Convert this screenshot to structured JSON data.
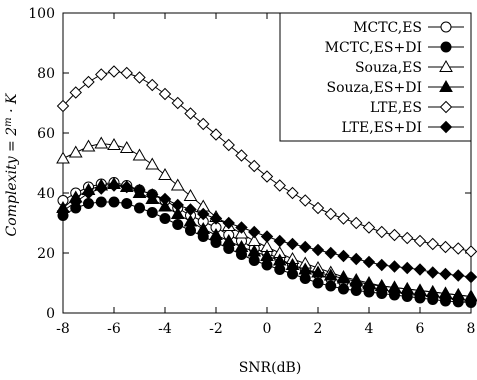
{
  "chart_data": {
    "type": "line",
    "title": "",
    "xlabel": "SNR(dB)",
    "ylabel_main": "Complexity = 2",
    "ylabel_sup": "m",
    "ylabel_tail": " · K",
    "xlim": [
      -8,
      8
    ],
    "ylim": [
      0,
      100
    ],
    "xticks": [
      "-8",
      "-6",
      "-4",
      "-2",
      "0",
      "2",
      "4",
      "6",
      "8"
    ],
    "yticks": [
      "0",
      "20",
      "40",
      "60",
      "80",
      "100"
    ],
    "grid": false,
    "legend_position": "top-right",
    "x": [
      -8,
      -7.5,
      -7,
      -6.5,
      -6,
      -5.5,
      -5,
      -4.5,
      -4,
      -3.5,
      -3,
      -2.5,
      -2,
      -1.5,
      -1,
      -0.5,
      0,
      0.5,
      1,
      1.5,
      2,
      2.5,
      3,
      3.5,
      4,
      4.5,
      5,
      5.5,
      6,
      6.5,
      7,
      7.5,
      8
    ],
    "series": [
      {
        "name": "MCTC,ES",
        "marker": "circle-open",
        "values": [
          37.5,
          40,
          42,
          43,
          43.5,
          42.5,
          41,
          39.5,
          37.5,
          35,
          32.5,
          30.5,
          28.5,
          26,
          24,
          21.5,
          20,
          18,
          16,
          14.5,
          13,
          11.5,
          10.5,
          9.5,
          8.5,
          7.8,
          7,
          6.5,
          6,
          5.5,
          5,
          4.6,
          4.2
        ]
      },
      {
        "name": "MCTC,ES+DI",
        "marker": "circle-filled",
        "values": [
          32.5,
          35,
          36.5,
          37,
          37,
          36.5,
          35,
          33.5,
          31.5,
          29.5,
          27.5,
          25.5,
          23.5,
          21.5,
          19.5,
          17.5,
          16,
          14.5,
          13,
          11.5,
          10,
          9,
          8,
          7.5,
          7,
          6.5,
          6,
          5.5,
          5,
          4.5,
          4,
          3.7,
          3.5
        ]
      },
      {
        "name": "Souza,ES",
        "marker": "triangle-open",
        "values": [
          51.5,
          53.5,
          55.5,
          56.5,
          56,
          55,
          52.5,
          49.5,
          46,
          42.5,
          39,
          35.5,
          32,
          29,
          26.5,
          24,
          22,
          20,
          18,
          16.5,
          15,
          13.5,
          12,
          11,
          10,
          9,
          8.5,
          8,
          7.5,
          7,
          6.5,
          6,
          5.5
        ]
      },
      {
        "name": "Souza,ES+DI",
        "marker": "triangle-filled",
        "values": [
          35,
          38.5,
          41,
          42.5,
          43,
          42,
          40,
          38,
          35.5,
          33,
          30.5,
          28,
          26,
          24,
          22,
          20.5,
          19,
          17.5,
          16,
          14.5,
          13.5,
          12.5,
          11.5,
          10.5,
          9.5,
          9,
          8.5,
          8,
          7.5,
          7,
          6.5,
          6,
          5.5
        ]
      },
      {
        "name": "LTE,ES",
        "marker": "diamond-open",
        "values": [
          69,
          73.5,
          77,
          79.5,
          80.5,
          80,
          78.5,
          76,
          73,
          70,
          66.5,
          63,
          59.5,
          56,
          52.5,
          49,
          45.5,
          42.5,
          40,
          37.5,
          35,
          33,
          31.5,
          30,
          28.5,
          27,
          26,
          25,
          24,
          23,
          22,
          21.5,
          20.5
        ]
      },
      {
        "name": "LTE,ES+DI",
        "marker": "diamond-filled",
        "values": [
          34,
          37,
          40,
          41.5,
          42.5,
          42,
          41,
          39.5,
          38,
          36,
          34.5,
          33,
          31.5,
          30,
          28.5,
          27,
          25.5,
          24,
          23,
          22,
          21,
          20,
          19,
          18,
          17,
          16,
          15.5,
          15,
          14.5,
          13.5,
          13,
          12.5,
          12
        ]
      }
    ]
  }
}
